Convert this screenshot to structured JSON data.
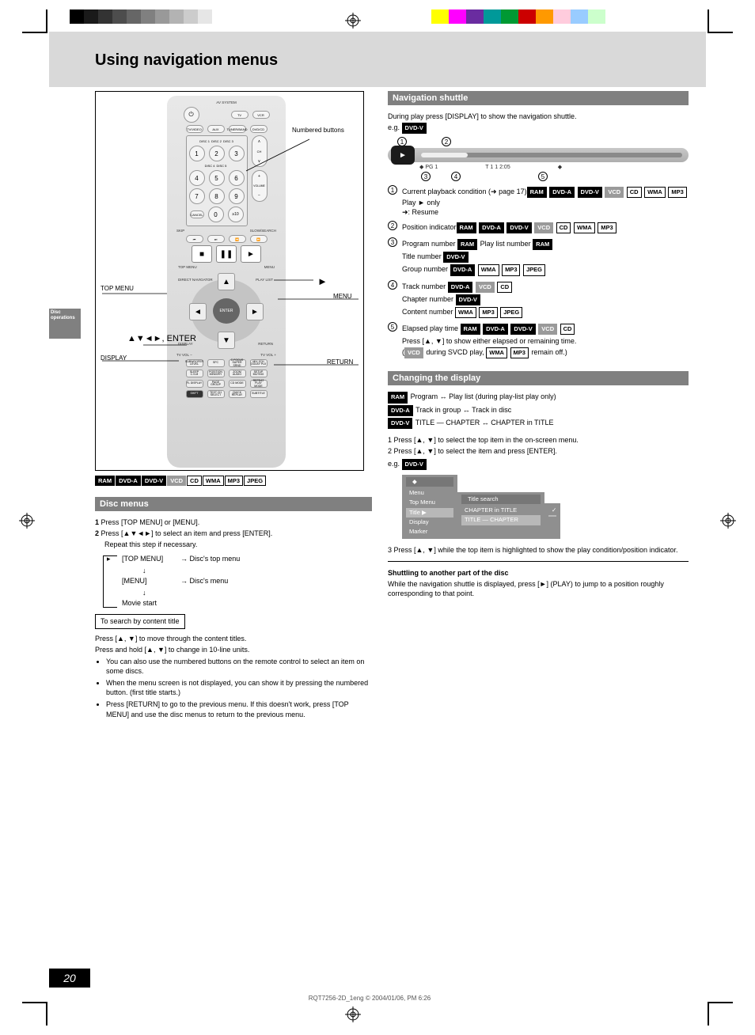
{
  "calibration": {
    "gray_swatches": [
      "#000000",
      "#1a1a1a",
      "#333333",
      "#4d4d4d",
      "#666666",
      "#808080",
      "#999999",
      "#b3b3b3",
      "#cccccc",
      "#e6e6e6",
      "#ffffff"
    ],
    "color_swatches": [
      "#ffff00",
      "#ff00ff",
      "#6a2ca0",
      "#009999",
      "#009933",
      "#cc0000",
      "#ff9900",
      "#ffccdd",
      "#99ccff",
      "#ccffcc"
    ]
  },
  "page": {
    "number": "20",
    "title": "Using navigation menus",
    "side_tab": "Disc operations",
    "footer": "RQT7256-2D_1eng   © 2004/01/06, PM 6:26"
  },
  "remote": {
    "callouts": {
      "top_menu": "TOP MENU",
      "display": "DISPLAY",
      "cursor": "▲▼◄►, ENTER",
      "numbered": "Numbered buttons",
      "play": "►",
      "menu": "MENU",
      "return": "RETURN"
    },
    "labels": {
      "av_system": "AV SYSTEM",
      "tv": "TV",
      "vcr": "VCR",
      "tvvideo": "TV/VIDEO",
      "aux": "AUX",
      "tuner": "TUNER/BAND",
      "dvdcd": "DVD/CD",
      "disc1": "DISC 1",
      "disc2": "DISC 2",
      "disc3": "DISC 3",
      "disc4": "DISC 4",
      "disc5": "DISC 5",
      "cancel": "CANCEL",
      "enter_ge10": "≥10",
      "ch": "CH",
      "vol": "VOLUME",
      "skip": "SKIP",
      "slow": "SLOW/SEARCH",
      "topmenu": "TOP MENU",
      "menu": "MENU",
      "direct": "DIRECT NAVIGATOR",
      "playlist": "PLAY LIST",
      "display": "DISPLAY",
      "return": "RETURN",
      "tvvolm": "TV VOL −",
      "tvvolp": "TV VOL +",
      "enter": "ENTER",
      "sub": "SUBWOOFER LEVEL",
      "sfc": "SFC",
      "csurr": "C.FOCUS SUPER SRND",
      "mix": "MIX 2CH DOLBY PLⅡ",
      "sleep": "SLEEP C.S.M",
      "pos": "POSITION MEMORY",
      "zoom": "ZOOM AUDIO",
      "setup": "SETUP MUTING",
      "page": "PAGE GROUP",
      "cd": "CD MODE",
      "repeat": "REPEAT PLAY MODE",
      "fl": "FL DISPLAY",
      "shift": "SHIFT",
      "chsel": "TEST CH SELECT",
      "quick": "QUICK REPLAY",
      "subtitle": "SUBTITLE"
    }
  },
  "disc_tags_all": [
    "RAM",
    "DVD-A",
    "DVD-V",
    "VCD",
    "CD",
    "WMA",
    "MP3",
    "JPEG"
  ],
  "disc_menus": {
    "heading": "Disc menus",
    "steps": [
      "Press [TOP MENU] or [MENU].",
      "Press [▲▼◄►] to select an item and press [ENTER].",
      "Repeat this step if necessary."
    ],
    "flow": {
      "topmenu": "→ Disc's top menu",
      "menu": "→ Disc's menu",
      "loop": "Movie start"
    },
    "search_title": "To search by content title",
    "search_body": [
      "Press [▲, ▼] to move through the content titles.",
      "Press and hold [▲, ▼] to change in 10-line units."
    ],
    "bullets": [
      "You can also use the numbered buttons on the remote control to select an item on some discs.",
      "When the menu screen is not displayed, you can show it by pressing the numbered button. (first title starts.)",
      "Press [RETURN] to go to the previous menu. If this doesn't work, press [TOP MENU] and use the disc menus to return to the previous menu."
    ]
  },
  "shuttle": {
    "heading": "Navigation shuttle",
    "eg": "e.g.",
    "eg_tag": "DVD-V",
    "intro": "During play press [DISPLAY] to show the navigation shuttle.",
    "circles": [
      "1",
      "2",
      "3",
      "4",
      "5"
    ],
    "strip_labels": {
      "play": "►",
      "group": "PG",
      "track": " 1",
      "time": "1  1  2:05"
    },
    "defs": [
      {
        "n": "1",
        "title": "Current playback condition (➜ page 17)",
        "tags": [
          "RAM",
          "DVD-A",
          "DVD-V",
          "VCD",
          "CD",
          "WMA",
          "MP3"
        ],
        "after": "Play ► only",
        "extra": "➜: Resume"
      },
      {
        "n": "2",
        "title": "Position indicator",
        "tags": [
          "RAM",
          "DVD-A",
          "DVD-V",
          "VCD",
          "CD",
          "WMA",
          "MP3"
        ]
      },
      {
        "n": "3",
        "title": "Program number ",
        "tags": [
          "RAM"
        ],
        "after": "  Play list number ",
        "tags2": [
          "RAM"
        ],
        "lines": [
          {
            "pre": "Title number ",
            "tags": [
              "DVD-V"
            ]
          },
          {
            "pre": "Group number ",
            "tags": [
              "DVD-A",
              "WMA",
              "MP3",
              "JPEG"
            ]
          }
        ]
      },
      {
        "n": "4",
        "title": "Track number ",
        "tags": [
          "DVD-A",
          "VCD",
          "CD"
        ],
        "lines": [
          {
            "pre": "Chapter number ",
            "tags": [
              "DVD-V"
            ]
          },
          {
            "pre": "Content number ",
            "tags": [
              "WMA",
              "MP3",
              "JPEG"
            ]
          }
        ]
      },
      {
        "n": "5",
        "title": "Elapsed play time ",
        "tags": [
          "RAM",
          "DVD-A",
          "DVD-V",
          "VCD",
          "CD"
        ],
        "lines": [
          {
            "pre": "Press [▲, ▼] to show either elapsed or remaining time."
          },
          {
            "pre": "(",
            "tags": [
              "VCD"
            ],
            "after": " during SVCD play, ",
            "tags2": [
              "WMA",
              "MP3"
            ],
            "after2": " remain off.)"
          }
        ]
      }
    ]
  },
  "display": {
    "heading": "Changing the display",
    "tags": {
      "ram": "RAM",
      "dvda": "DVD-A",
      "dvdv": "DVD-V"
    },
    "lines": {
      "ram": "Program ↔ Play list (during play-list play only)",
      "dvda": "Track in group ↔ Track in disc",
      "dvdv": "TITLE — CHAPTER ↔ CHAPTER in TITLE"
    },
    "step1": "1 Press [▲, ▼] to select the top item in the on-screen menu.",
    "step2": "2 Press [▲, ▼] to select the item and press [ENTER].",
    "eg_tag": "DVD-V",
    "menu": {
      "pane1": [
        "Menu",
        "Top Menu",
        "Title ▶",
        "Display",
        "Marker"
      ],
      "pane2_head": "Title search",
      "pane2": [
        "CHAPTER in TITLE",
        "TITLE — CHAPTER"
      ],
      "pane3": [
        "✓",
        ""
      ]
    },
    "step3": "3 Press [▲, ▼] while the top item is highlighted to show the play condition/position indicator.",
    "hr_title": "Shuttling to another part of the disc",
    "hr_body": "While the navigation shuttle is displayed, press [►] (PLAY) to jump to a position roughly corresponding to that point."
  }
}
